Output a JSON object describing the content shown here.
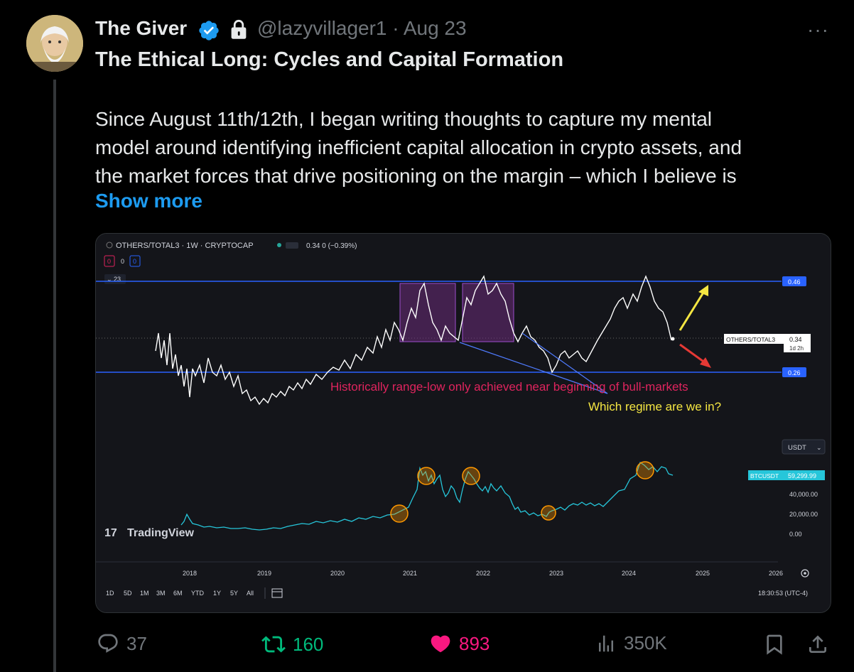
{
  "tweet": {
    "author_name": "The Giver",
    "handle": "@lazyvillager1",
    "date": "Aug 23",
    "meta": "@lazyvillager1 · Aug 23",
    "title": "The Ethical Long: Cycles and Capital Formation",
    "body_lines": [
      "Since August 11th/12th, I began writing thoughts to capture my mental",
      "model around identifying inefficient capital allocation in crypto assets, and",
      "the market forces that drive positioning on the margin – which I believe is"
    ],
    "show_more_label": "Show more",
    "more_label": "···"
  },
  "chart_header": {
    "symbol": "OTHERS/TOTAL3 · 1W · CRYPTOCAP",
    "value": "0.34 0 (−0.39%)",
    "box1": "0",
    "box2": "0",
    "box3": "0",
    "collapse": "23"
  },
  "chart_labels": {
    "upper_price": "0.46",
    "lower_price": "0.26",
    "tag_symbol": "OTHERS/TOTAL3",
    "tag_value": "0.34",
    "tag_time": "1d 2h",
    "annotation_red": "Historically range-low only achieved near beginning of bull-markets",
    "annotation_yellow": "Which regime are we in?",
    "currency": "USDT",
    "btc_tag": "BTCUSDT",
    "btc_value": "59,299.99",
    "btc_axis": [
      "40,000.00",
      "20,000.00",
      "0.00"
    ],
    "watermark": "TradingView",
    "years": [
      "2018",
      "2019",
      "2020",
      "2021",
      "2022",
      "2023",
      "2024",
      "2025",
      "2026"
    ],
    "timeframes": [
      "1D",
      "5D",
      "1M",
      "3M",
      "6M",
      "YTD",
      "1Y",
      "5Y",
      "All"
    ],
    "clock": "18:30:53 (UTC-4)"
  },
  "colors": {
    "accent_blue": "#1d9bf0",
    "retweet_green": "#00ba7c",
    "like_pink": "#f91880",
    "chart_line_white": "#ffffff",
    "btc_line_teal": "#26c6da",
    "range_line_blue": "#2962ff",
    "annotation_red": "#e0245e",
    "annotation_yellow": "#f5e642"
  },
  "actions": {
    "replies": "37",
    "reposts": "160",
    "likes": "893",
    "views": "350K"
  },
  "icons": [
    "verified-icon",
    "lock-icon",
    "reply-icon",
    "repost-icon",
    "heart-icon",
    "views-icon",
    "bookmark-icon",
    "share-icon"
  ]
}
